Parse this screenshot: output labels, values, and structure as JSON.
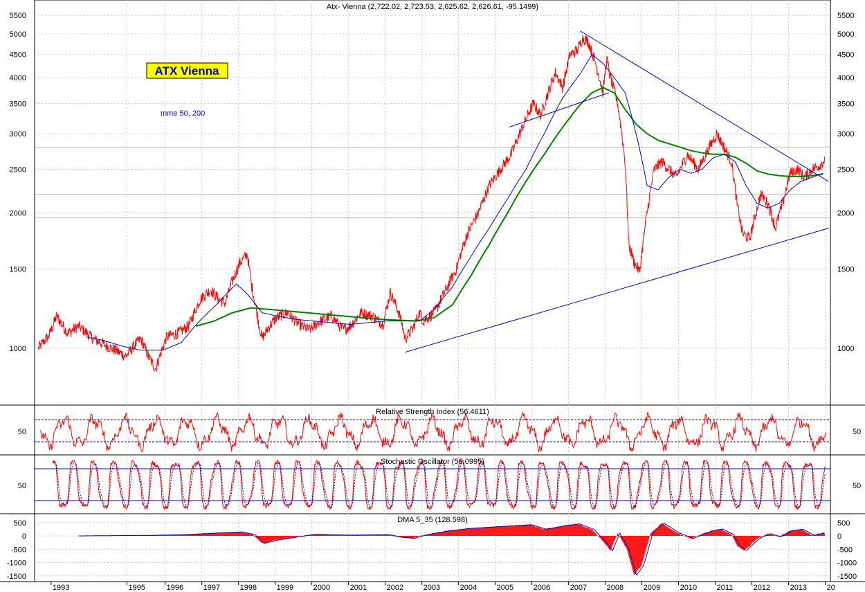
{
  "chart_data": [
    {
      "type": "line",
      "title": "Atx- Vienna (2,722.02, 2,723.53, 2,625.62, 2,626.61, -95.1499)",
      "label_box": "ATX Vienna",
      "subtitle": "mme 50, 200",
      "scale": "log",
      "ylim": [
        880,
        5700
      ],
      "y_ticks": [
        1000,
        1500,
        2000,
        2500,
        3000,
        3500,
        4000,
        4500,
        5000,
        5500
      ],
      "x_ticks": [
        "1993",
        "1995",
        "1996",
        "1997",
        "1998",
        "1999",
        "2000",
        "2001",
        "2002",
        "2003",
        "2004",
        "2005",
        "2006",
        "2007",
        "2008",
        "2009",
        "2010",
        "2011",
        "2012",
        "2013",
        "20"
      ],
      "x_tick_years": [
        1992.85,
        1994.92,
        1995.96,
        1996.96,
        1997.96,
        1998.96,
        1999.96,
        2000.96,
        2001.96,
        2002.96,
        2003.96,
        2004.96,
        2005.96,
        2006.96,
        2007.96,
        2008.96,
        2009.96,
        2010.96,
        2011.96,
        2012.96,
        2013.96
      ],
      "reference_levels": [
        2800,
        2200,
        1950
      ],
      "colors": {
        "price": "#ff0000",
        "ma50": "#0000cc",
        "ma200": "#008000",
        "trend": "#0000cc"
      },
      "series": [
        {
          "name": "price",
          "x": [
            1992.5,
            1992.8,
            1993.0,
            1993.3,
            1993.6,
            1994.0,
            1994.3,
            1994.6,
            1994.9,
            1995.1,
            1995.3,
            1995.5,
            1995.7,
            1996.0,
            1996.3,
            1996.6,
            1996.9,
            1997.2,
            1997.4,
            1997.6,
            1997.8,
            1998.0,
            1998.2,
            1998.3,
            1998.5,
            1998.6,
            1998.8,
            1999.0,
            1999.3,
            1999.6,
            1999.9,
            2000.2,
            2000.5,
            2000.8,
            2001.0,
            2001.3,
            2001.6,
            2001.9,
            2002.1,
            2002.3,
            2002.4,
            2002.5,
            2002.7,
            2002.9,
            2003.0,
            2003.3,
            2003.6,
            2003.9,
            2004.2,
            2004.5,
            2004.8,
            2005.1,
            2005.4,
            2005.7,
            2006.0,
            2006.2,
            2006.4,
            2006.6,
            2006.8,
            2007.0,
            2007.2,
            2007.35,
            2007.5,
            2007.7,
            2007.9,
            2008.0,
            2008.1,
            2008.3,
            2008.5,
            2008.6,
            2008.75,
            2008.9,
            2009.1,
            2009.3,
            2009.5,
            2009.7,
            2009.9,
            2010.2,
            2010.5,
            2010.8,
            2011.0,
            2011.2,
            2011.4,
            2011.55,
            2011.7,
            2011.9,
            2012.2,
            2012.4,
            2012.6,
            2012.8,
            2013.0,
            2013.2,
            2013.4,
            2013.6,
            2013.8,
            2013.95
          ],
          "values": [
            1000,
            1070,
            1180,
            1080,
            1120,
            1050,
            1020,
            990,
            960,
            1010,
            1050,
            960,
            900,
            1060,
            1080,
            1120,
            1280,
            1350,
            1290,
            1260,
            1420,
            1550,
            1620,
            1400,
            1150,
            1050,
            1120,
            1170,
            1200,
            1130,
            1100,
            1150,
            1180,
            1100,
            1120,
            1200,
            1180,
            1130,
            1330,
            1220,
            1150,
            1050,
            1100,
            1200,
            1150,
            1200,
            1340,
            1500,
            1800,
            2000,
            2300,
            2500,
            2700,
            3100,
            3500,
            3300,
            3700,
            4100,
            3800,
            4500,
            4600,
            4900,
            4800,
            4300,
            3700,
            4400,
            4000,
            3500,
            2600,
            1700,
            1550,
            1480,
            2000,
            2500,
            2600,
            2500,
            2400,
            2700,
            2500,
            2800,
            3000,
            2800,
            2600,
            2100,
            1800,
            1750,
            2200,
            2100,
            1850,
            2100,
            2450,
            2500,
            2400,
            2500,
            2550,
            2627
          ]
        },
        {
          "name": "ma50",
          "x": [
            1993.8,
            1994.3,
            1994.8,
            1995.3,
            1995.9,
            1996.4,
            1996.9,
            1997.4,
            1997.9,
            1998.2,
            1998.6,
            1999.0,
            1999.5,
            2000.0,
            2000.5,
            2001.0,
            2001.5,
            2002.0,
            2002.5,
            2002.9,
            2003.3,
            2003.8,
            2004.3,
            2004.8,
            2005.3,
            2005.8,
            2006.3,
            2006.8,
            2007.3,
            2007.6,
            2007.9,
            2008.2,
            2008.5,
            2008.8,
            2009.1,
            2009.4,
            2009.7,
            2010.0,
            2010.3,
            2010.6,
            2010.9,
            2011.2,
            2011.5,
            2011.8,
            2012.1,
            2012.4,
            2012.7,
            2013.0,
            2013.3,
            2013.6,
            2013.9
          ],
          "values": [
            1060,
            1040,
            1010,
            990,
            990,
            1030,
            1150,
            1260,
            1390,
            1320,
            1200,
            1180,
            1160,
            1150,
            1140,
            1130,
            1140,
            1150,
            1150,
            1150,
            1220,
            1370,
            1600,
            1850,
            2150,
            2500,
            3000,
            3600,
            4100,
            4500,
            4300,
            4000,
            3700,
            3000,
            2300,
            2250,
            2400,
            2500,
            2450,
            2500,
            2650,
            2700,
            2600,
            2300,
            2100,
            2050,
            2100,
            2250,
            2350,
            2400,
            2450
          ]
        },
        {
          "name": "ma200",
          "x": [
            1996.8,
            1997.3,
            1997.8,
            1998.3,
            1998.8,
            1999.3,
            1999.8,
            2000.3,
            2000.8,
            2001.3,
            2001.8,
            2002.3,
            2002.8,
            2003.3,
            2003.8,
            2004.3,
            2004.8,
            2005.3,
            2005.8,
            2006.3,
            2006.8,
            2007.3,
            2007.6,
            2007.9,
            2008.2,
            2008.5,
            2008.8,
            2009.1,
            2009.4,
            2009.7,
            2010.0,
            2010.3,
            2010.6,
            2010.9,
            2011.2,
            2011.5,
            2011.8,
            2012.1,
            2012.4,
            2012.7,
            2013.0,
            2013.3,
            2013.6,
            2013.9
          ],
          "values": [
            1120,
            1150,
            1200,
            1230,
            1220,
            1210,
            1200,
            1190,
            1180,
            1170,
            1160,
            1155,
            1150,
            1170,
            1250,
            1450,
            1700,
            2000,
            2350,
            2700,
            3100,
            3500,
            3700,
            3800,
            3700,
            3400,
            3150,
            3000,
            2900,
            2850,
            2800,
            2750,
            2720,
            2700,
            2700,
            2660,
            2580,
            2480,
            2440,
            2420,
            2410,
            2410,
            2420,
            2440
          ]
        },
        {
          "name": "trend-upper",
          "x": [
            2005.33,
            2008.06
          ],
          "values": [
            3100,
            3700
          ]
        },
        {
          "name": "trend-top",
          "x": [
            2007.27,
            2014.05
          ],
          "values": [
            5080,
            2350
          ]
        },
        {
          "name": "trend-bottom",
          "x": [
            2002.5,
            2014.05
          ],
          "values": [
            980,
            1850
          ]
        }
      ]
    },
    {
      "type": "line",
      "title": "Relative Strength Index (56.4611)",
      "y_ticks": [
        50
      ],
      "ylim": [
        5,
        95
      ],
      "levels": [
        70,
        30
      ],
      "series": [
        {
          "name": "rsi",
          "color": "#ff0000"
        }
      ]
    },
    {
      "type": "line",
      "title": "Stochastic Oscillator (56.0995)",
      "y_ticks": [
        50
      ],
      "ylim": [
        0,
        100
      ],
      "levels": [
        80,
        20
      ],
      "series": [
        {
          "name": "%K",
          "color": "#ff0000"
        },
        {
          "name": "%D",
          "color": "#0000cc"
        }
      ]
    },
    {
      "type": "area",
      "title": "DMA 5_35 (128.598)",
      "y_ticks": [
        500,
        0,
        -500,
        -1000,
        -1500
      ],
      "ylim": [
        -1700,
        700
      ],
      "series": [
        {
          "name": "dma",
          "color": "#ff0000",
          "x": [
            1993.6,
            1994.5,
            1995.5,
            1996.5,
            1997.5,
            1998.0,
            1998.35,
            1998.6,
            1999.0,
            2000.0,
            2001.0,
            2002.0,
            2002.4,
            2002.7,
            2003.0,
            2003.6,
            2004.2,
            2004.8,
            2005.4,
            2005.9,
            2006.3,
            2006.8,
            2007.2,
            2007.6,
            2007.9,
            2008.1,
            2008.3,
            2008.55,
            2008.75,
            2008.95,
            2009.2,
            2009.5,
            2009.9,
            2010.3,
            2010.8,
            2011.1,
            2011.4,
            2011.55,
            2011.75,
            2012.1,
            2012.4,
            2012.7,
            2013.0,
            2013.3,
            2013.6,
            2013.95
          ],
          "values": [
            0,
            10,
            20,
            50,
            120,
            150,
            50,
            -280,
            -150,
            60,
            30,
            50,
            -60,
            -90,
            30,
            180,
            280,
            330,
            380,
            420,
            250,
            380,
            450,
            240,
            -200,
            -550,
            100,
            -500,
            -1480,
            -1100,
            100,
            480,
            130,
            -100,
            180,
            260,
            50,
            -350,
            -550,
            -100,
            80,
            -30,
            200,
            250,
            20,
            129
          ]
        }
      ]
    }
  ]
}
